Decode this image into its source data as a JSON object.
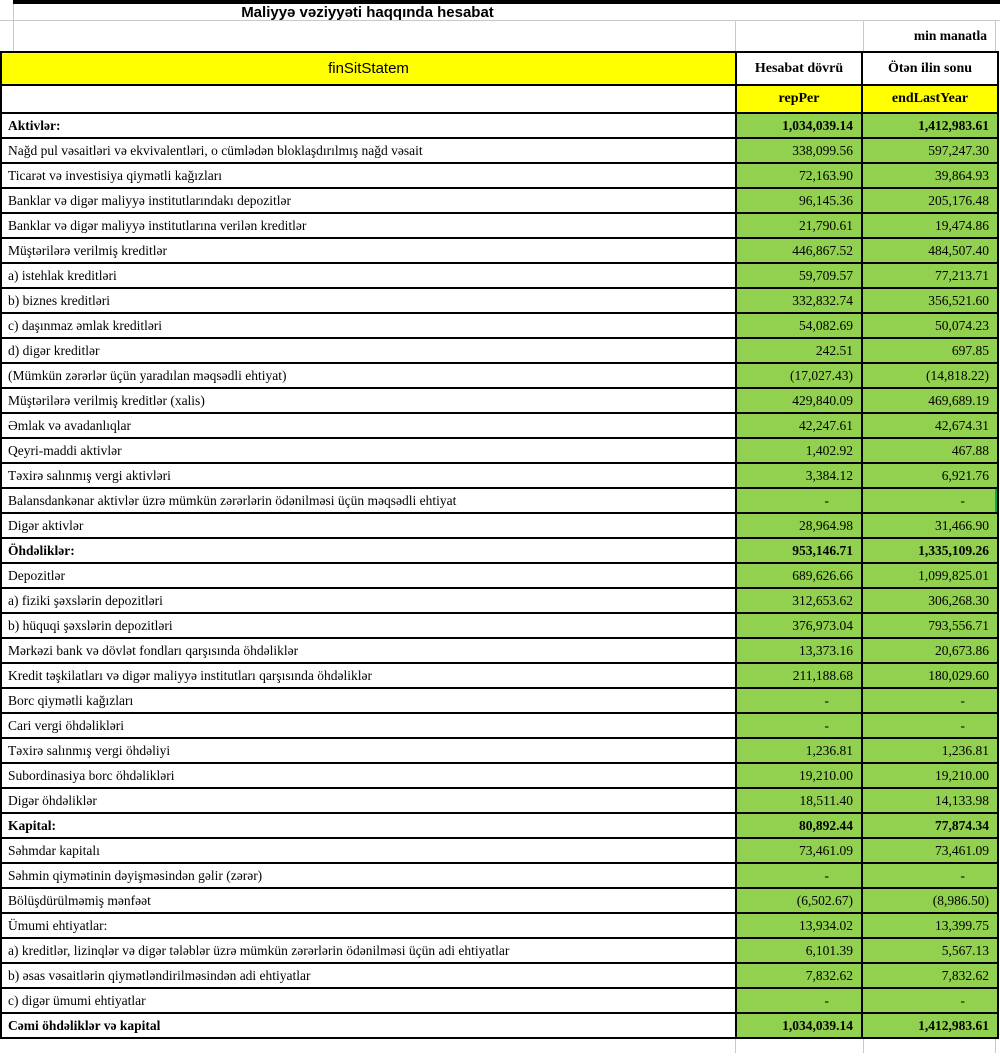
{
  "title": "Maliyyə vəziyyəti haqqında hesabat",
  "unit_note": "min manatla",
  "colors": {
    "header_yellow": "#FFFF00",
    "cell_green": "#92D050",
    "selection_green": "#00B050"
  },
  "selection": {
    "row_index": 15,
    "column": "endLastYear"
  },
  "table": {
    "header": {
      "form_code": "finSitStatem",
      "reporting_period_label": "Hesabat dövrü",
      "end_last_year_label": "Ötən ilin sonu",
      "reporting_period_code": "repPer",
      "end_last_year_code": "endLastYear"
    },
    "rows": [
      {
        "label": "Aktivlər:",
        "repPer": "1,034,039.14",
        "endLastYear": "1,412,983.61",
        "section": true
      },
      {
        "label": "Nağd pul vəsaitləri və ekvivalentləri, o cümlədən bloklaşdırılmış nağd vəsait",
        "repPer": "338,099.56",
        "endLastYear": "597,247.30"
      },
      {
        "label": "Ticarət və investisiya qiymətli kağızları",
        "repPer": "72,163.90",
        "endLastYear": "39,864.93"
      },
      {
        "label": "Banklar və digər maliyyə institutlarındakı depozitlər",
        "repPer": "96,145.36",
        "endLastYear": "205,176.48"
      },
      {
        "label": "Banklar və digər maliyyə institutlarına verilən kreditlər",
        "repPer": "21,790.61",
        "endLastYear": "19,474.86"
      },
      {
        "label": "Müştərilərə verilmiş kreditlər",
        "repPer": "446,867.52",
        "endLastYear": "484,507.40"
      },
      {
        "label": "a) istehlak kreditləri",
        "repPer": "59,709.57",
        "endLastYear": "77,213.71"
      },
      {
        "label": "b) biznes kreditləri",
        "repPer": "332,832.74",
        "endLastYear": "356,521.60"
      },
      {
        "label": "c) daşınmaz əmlak kreditləri",
        "repPer": "54,082.69",
        "endLastYear": "50,074.23"
      },
      {
        "label": "d) digər kreditlər",
        "repPer": "242.51",
        "endLastYear": "697.85"
      },
      {
        "label": "(Mümkün zərərlər üçün yaradılan məqsədli ehtiyat)",
        "repPer": "(17,027.43)",
        "endLastYear": "(14,818.22)"
      },
      {
        "label": "Müştərilərə verilmiş kreditlər (xalis)",
        "repPer": "429,840.09",
        "endLastYear": "469,689.19"
      },
      {
        "label": "Əmlak və avadanlıqlar",
        "repPer": "42,247.61",
        "endLastYear": "42,674.31"
      },
      {
        "label": "Qeyri-maddi aktivlər",
        "repPer": "1,402.92",
        "endLastYear": "467.88"
      },
      {
        "label": "Təxirə salınmış vergi aktivləri",
        "repPer": "3,384.12",
        "endLastYear": "6,921.76"
      },
      {
        "label": "Balansdankənar aktivlər üzrə mümkün zərərlərin ödənilməsi üçün məqsədli ehtiyat",
        "repPer": "-",
        "endLastYear": "-"
      },
      {
        "label": "Digər aktivlər",
        "repPer": "28,964.98",
        "endLastYear": "31,466.90"
      },
      {
        "label": "Öhdəliklər:",
        "repPer": "953,146.71",
        "endLastYear": "1,335,109.26",
        "section": true
      },
      {
        "label": "Depozitlər",
        "repPer": "689,626.66",
        "endLastYear": "1,099,825.01"
      },
      {
        "label": "a) fiziki şəxslərin depozitləri",
        "repPer": "312,653.62",
        "endLastYear": "306,268.30"
      },
      {
        "label": "b) hüquqi şəxslərin depozitləri",
        "repPer": "376,973.04",
        "endLastYear": "793,556.71"
      },
      {
        "label": "Mərkəzi bank və dövlət fondları qarşısında öhdəliklər",
        "repPer": "13,373.16",
        "endLastYear": "20,673.86"
      },
      {
        "label": "Kredit təşkilatları və digər maliyyə institutları qarşısında öhdəliklər",
        "repPer": "211,188.68",
        "endLastYear": "180,029.60"
      },
      {
        "label": "Borc qiymətli kağızları",
        "repPer": "-",
        "endLastYear": "-"
      },
      {
        "label": "Cari vergi öhdəlikləri",
        "repPer": "-",
        "endLastYear": "-"
      },
      {
        "label": "Təxirə salınmış vergi öhdəliyi",
        "repPer": "1,236.81",
        "endLastYear": "1,236.81"
      },
      {
        "label": "Subordinasiya borc öhdəlikləri",
        "repPer": "19,210.00",
        "endLastYear": "19,210.00"
      },
      {
        "label": "Digər öhdəliklər",
        "repPer": "18,511.40",
        "endLastYear": "14,133.98"
      },
      {
        "label": "Kapital:",
        "repPer": "80,892.44",
        "endLastYear": "77,874.34",
        "section": true
      },
      {
        "label": "Səhmdar kapitalı",
        "repPer": "73,461.09",
        "endLastYear": "73,461.09"
      },
      {
        "label": "Səhmin qiymətinin dəyişməsindən gəlir (zərər)",
        "repPer": "-",
        "endLastYear": "-"
      },
      {
        "label": "Bölüşdürülməmiş mənfəət",
        "repPer": "(6,502.67)",
        "endLastYear": "(8,986.50)"
      },
      {
        "label": "Ümumi ehtiyatlar:",
        "repPer": "13,934.02",
        "endLastYear": "13,399.75"
      },
      {
        "label": "a) kreditlər, lizinqlər və digər tələblər üzrə mümkün zərərlərin ödənilməsi üçün adi ehtiyatlar",
        "repPer": "6,101.39",
        "endLastYear": "5,567.13"
      },
      {
        "label": "b) əsas vəsaitlərin qiymətləndirilməsindən adi ehtiyatlar",
        "repPer": "7,832.62",
        "endLastYear": "7,832.62"
      },
      {
        "label": "c) digər ümumi ehtiyatlar",
        "repPer": "-",
        "endLastYear": "-"
      },
      {
        "label": "Cəmi öhdəliklər və kapital",
        "repPer": "1,034,039.14",
        "endLastYear": "1,412,983.61",
        "section": true
      }
    ]
  }
}
